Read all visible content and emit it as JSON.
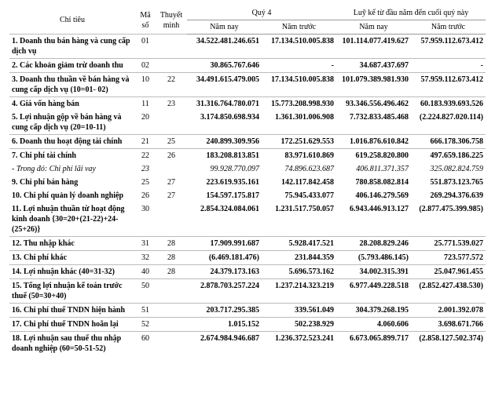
{
  "header": {
    "chi_tieu": "Chỉ tiêu",
    "ma_so": "Mã số",
    "thuyet_minh": "Thuyết minh",
    "quy4": "Quý 4",
    "luyke": "Luỹ kế từ đầu năm đến cuối quý này",
    "nam_nay": "Năm nay",
    "nam_truoc": "Năm trước"
  },
  "rows": [
    {
      "sep": true,
      "bold": true,
      "name": "1. Doanh thu bán hàng và cung cấp dịch vụ",
      "ms": "01",
      "tm": "",
      "q_nay": "34.522.481.246.651",
      "q_truoc": "17.134.510.005.838",
      "l_nay": "101.114.077.419.627",
      "l_truoc": "57.959.112.673.412"
    },
    {
      "sep": true,
      "bold": true,
      "name": "2. Các khoản giảm trừ doanh thu",
      "ms": "02",
      "tm": "",
      "q_nay": "30.865.767.646",
      "q_truoc": "-",
      "l_nay": "34.687.437.697",
      "l_truoc": "-"
    },
    {
      "sep": true,
      "bold": true,
      "name": "3. Doanh thu thuần về bán hàng và cung cấp dịch vụ (10=01- 02)",
      "ms": "10",
      "tm": "22",
      "q_nay": "34.491.615.479.005",
      "q_truoc": "17.134.510.005.838",
      "l_nay": "101.079.389.981.930",
      "l_truoc": "57.959.112.673.412"
    },
    {
      "sep": true,
      "bold": true,
      "name": "4. Giá vốn hàng bán",
      "ms": "11",
      "tm": "23",
      "q_nay": "31.316.764.780.071",
      "q_truoc": "15.773.208.998.930",
      "l_nay": "93.346.556.496.462",
      "l_truoc": "60.183.939.693.526"
    },
    {
      "sep": false,
      "bold": true,
      "name": "5. Lợi nhuận gộp về bán hàng và cung cấp dịch vụ (20=10-11)",
      "ms": "20",
      "tm": "",
      "q_nay": "3.174.850.698.934",
      "q_truoc": "1.361.301.006.908",
      "l_nay": "7.732.833.485.468",
      "l_truoc": "(2.224.827.020.114)"
    },
    {
      "sep": true,
      "bold": true,
      "name": "6. Doanh thu hoạt động tài chính",
      "ms": "21",
      "tm": "25",
      "q_nay": "240.899.309.956",
      "q_truoc": "172.251.629.553",
      "l_nay": "1.016.876.610.842",
      "l_truoc": "666.178.306.758"
    },
    {
      "sep": true,
      "bold": true,
      "name": "7. Chi phí tài chính",
      "ms": "22",
      "tm": "26",
      "q_nay": "183.208.813.851",
      "q_truoc": "83.971.610.869",
      "l_nay": "619.258.820.800",
      "l_truoc": "497.659.186.225"
    },
    {
      "sep": false,
      "italic": true,
      "name": "- Trong đó: Chi phí lãi vay",
      "ms": "23",
      "tm": "",
      "q_nay": "99.928.770.097",
      "q_truoc": "74.896.623.687",
      "l_nay": "406.811.371.357",
      "l_truoc": "325.082.824.759"
    },
    {
      "sep": false,
      "bold": true,
      "name": "9. Chi phí bán hàng",
      "ms": "25",
      "tm": "27",
      "q_nay": "223.619.935.161",
      "q_truoc": "142.117.842.458",
      "l_nay": "780.858.082.814",
      "l_truoc": "551.873.123.765"
    },
    {
      "sep": false,
      "bold": true,
      "name": "10. Chi phí quản lý doanh nghiệp",
      "ms": "26",
      "tm": "27",
      "q_nay": "154.597.175.817",
      "q_truoc": "75.945.433.077",
      "l_nay": "406.146.279.569",
      "l_truoc": "269.294.376.639"
    },
    {
      "sep": false,
      "bold": true,
      "name": "11. Lợi nhuận thuần từ hoạt động kinh doanh {30=20+(21-22)+24-(25+26)}",
      "ms": "30",
      "tm": "",
      "q_nay": "2.854.324.084.061",
      "q_truoc": "1.231.517.750.057",
      "l_nay": "6.943.446.913.127",
      "l_truoc": "(2.877.475.399.985)"
    },
    {
      "sep": true,
      "bold": true,
      "name": "12. Thu nhập khác",
      "ms": "31",
      "tm": "28",
      "q_nay": "17.909.991.687",
      "q_truoc": "5.928.417.521",
      "l_nay": "28.208.829.246",
      "l_truoc": "25.771.539.027"
    },
    {
      "sep": true,
      "bold": true,
      "name": "13. Chi phí khác",
      "ms": "32",
      "tm": "28",
      "q_nay": "(6.469.181.476)",
      "q_truoc": "231.844.359",
      "l_nay": "(5.793.486.145)",
      "l_truoc": "723.577.572"
    },
    {
      "sep": true,
      "bold": true,
      "name": "14. Lợi nhuận khác (40=31-32)",
      "ms": "40",
      "tm": "28",
      "q_nay": "24.379.173.163",
      "q_truoc": "5.696.573.162",
      "l_nay": "34.002.315.391",
      "l_truoc": "25.047.961.455"
    },
    {
      "sep": true,
      "bold": true,
      "name": "15. Tổng lợi nhuận kế toán trước thuế (50=30+40)",
      "ms": "50",
      "tm": "",
      "q_nay": "2.878.703.257.224",
      "q_truoc": "1.237.214.323.219",
      "l_nay": "6.977.449.228.518",
      "l_truoc": "(2.852.427.438.530)"
    },
    {
      "sep": true,
      "bold": true,
      "name": "16. Chi phí thuế TNDN hiện hành",
      "ms": "51",
      "tm": "",
      "q_nay": "203.717.295.385",
      "q_truoc": "339.561.049",
      "l_nay": "304.379.268.195",
      "l_truoc": "2.001.392.078"
    },
    {
      "sep": true,
      "bold": true,
      "name": "17. Chi phí thuế TNDN hoãn lại",
      "ms": "52",
      "tm": "",
      "q_nay": "1.015.152",
      "q_truoc": "502.238.929",
      "l_nay": "4.060.606",
      "l_truoc": "3.698.671.766"
    },
    {
      "sep": true,
      "bold": true,
      "name": "18. Lợi nhuận sau thuế thu nhập doanh nghiệp (60=50-51-52)",
      "ms": "60",
      "tm": "",
      "q_nay": "2.674.984.946.687",
      "q_truoc": "1.236.372.523.241",
      "l_nay": "6.673.065.899.717",
      "l_truoc": "(2.858.127.502.374)"
    }
  ],
  "style": {
    "font_size": 10,
    "text_color": "#000000",
    "background_color": "#ffffff",
    "border_color": "#999999",
    "row_border_color": "#bbbbbb"
  }
}
